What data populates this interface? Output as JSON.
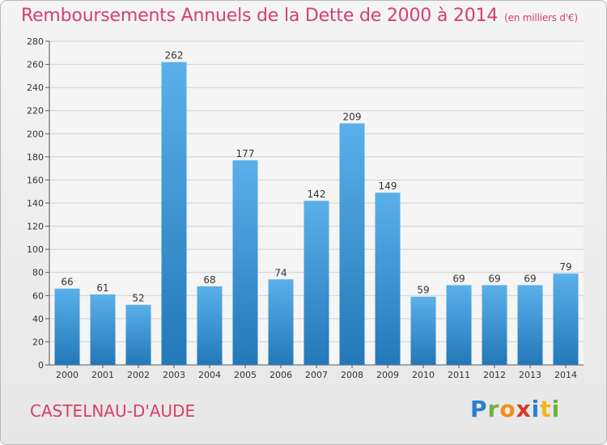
{
  "header": {
    "title": "Remboursements Annuels de la Dette de 2000 à 2014",
    "subtitle": "(en milliers d'€)"
  },
  "footer": {
    "city": "CASTELNAU-D'AUDE",
    "logo": "Proxiti"
  },
  "colors": {
    "title": "#d6406b",
    "bar_top": "#5ab0ea",
    "bar_bottom": "#2378b8"
  },
  "chart_data": {
    "type": "bar",
    "title": "Remboursements Annuels de la Dette de 2000 à 2014",
    "subtitle": "(en milliers d'€)",
    "categories": [
      "2000",
      "2001",
      "2002",
      "2003",
      "2004",
      "2005",
      "2006",
      "2007",
      "2008",
      "2009",
      "2010",
      "2011",
      "2012",
      "2013",
      "2014"
    ],
    "values": [
      66,
      61,
      52,
      262,
      68,
      177,
      74,
      142,
      209,
      149,
      59,
      69,
      69,
      69,
      79
    ],
    "ylim": [
      0,
      280
    ],
    "yticks": [
      0,
      20,
      40,
      60,
      80,
      100,
      120,
      140,
      160,
      180,
      200,
      220,
      240,
      260,
      280
    ],
    "grid": true,
    "xlabel": "",
    "ylabel": ""
  }
}
